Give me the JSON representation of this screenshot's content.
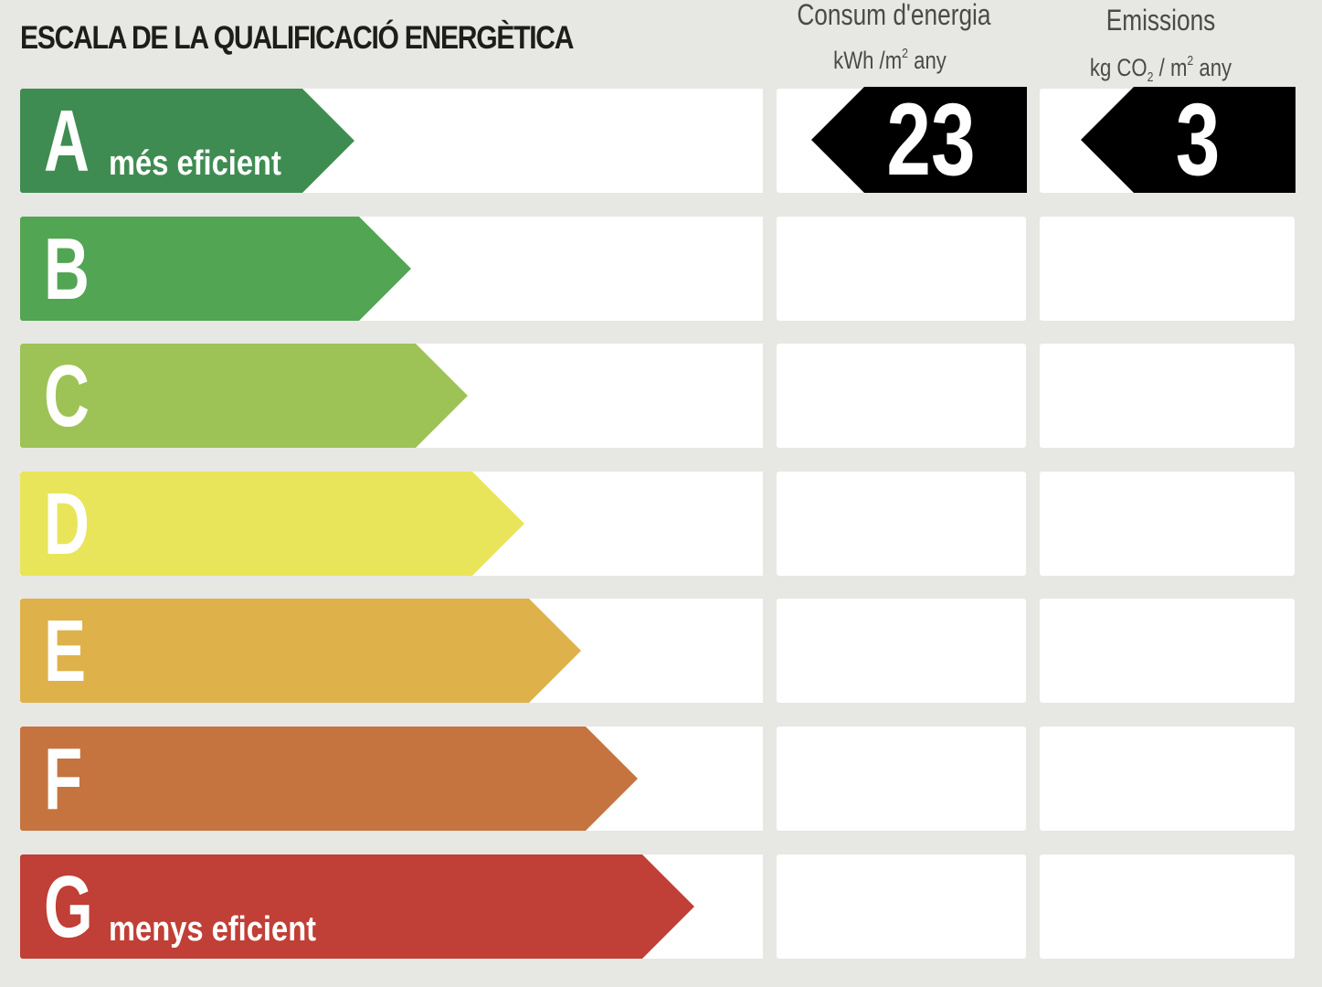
{
  "title": "ESCALA DE LA QUALIFICACIÓ ENERGÈTICA",
  "columns": {
    "energy": {
      "title": "Consum d'energia",
      "unit_main": "kWh /m",
      "unit_sup": "2",
      "unit_tail": " any"
    },
    "emissions": {
      "title": "Emissions",
      "unit_main": "kg CO",
      "unit_sub": "2",
      "unit_mid": " / m",
      "unit_sup": "2",
      "unit_tail": " any"
    }
  },
  "grades": [
    {
      "letter": "A",
      "caption": "més eficient",
      "color": "#3f8c52"
    },
    {
      "letter": "B",
      "caption": "",
      "color": "#51a553"
    },
    {
      "letter": "C",
      "caption": "",
      "color": "#9dc356"
    },
    {
      "letter": "D",
      "caption": "",
      "color": "#e9e55b"
    },
    {
      "letter": "E",
      "caption": "",
      "color": "#deb14a"
    },
    {
      "letter": "F",
      "caption": "",
      "color": "#c5743f"
    },
    {
      "letter": "G",
      "caption": "menys eficient",
      "color": "#c03f36"
    }
  ],
  "rating": {
    "grade": "A",
    "energy_value": "23",
    "emissions_value": "3",
    "badge_color": "#000000"
  }
}
